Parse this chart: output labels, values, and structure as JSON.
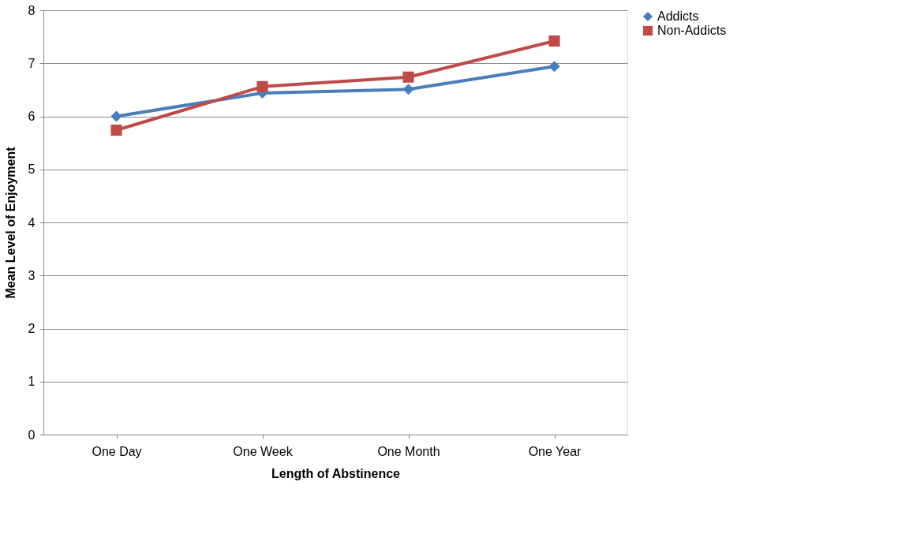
{
  "chart_data": {
    "type": "line",
    "xlabel": "Length of Abstinence",
    "ylabel": "Mean Level of Enjoyment",
    "categories": [
      "One Day",
      "One Week",
      "One Month",
      "One Year"
    ],
    "series": [
      {
        "name": "Addicts",
        "color": "#4a7ebb",
        "marker": "diamond",
        "values": [
          6.0,
          6.44,
          6.51,
          6.94
        ]
      },
      {
        "name": "Non-Addicts",
        "color": "#be4b48",
        "marker": "square",
        "values": [
          5.74,
          6.56,
          6.74,
          7.42
        ]
      }
    ],
    "ylim": [
      0,
      8
    ],
    "yticks": [
      0,
      1,
      2,
      3,
      4,
      5,
      6,
      7,
      8
    ],
    "grid": "y",
    "legend": "right",
    "line_style": "solid"
  }
}
